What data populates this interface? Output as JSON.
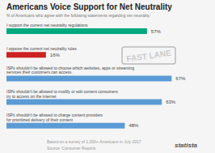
{
  "chart_data": {
    "type": "bar",
    "orientation": "horizontal",
    "title": "Americans Voice Support for Net Neutrality",
    "subtitle": "% of Americans who agree with the following statements regarding net neutrality",
    "categories": [
      "I support the current net neutrality regulations",
      "I oppose the current net neutrality rules",
      "ISPs shouldn't be allowed to choose which websites, apps or streaming\nservices their customers can access.",
      "ISPs shouldn't be allowed to modify or edit content consumers\ntry to access on the internet",
      "ISPs shouldn't be allowed to charge content providers\nfor prioritized delivery of their content"
    ],
    "values": [
      57,
      16,
      67,
      63,
      48
    ],
    "value_labels": [
      "57%",
      "16%",
      "67%",
      "63%",
      "48%"
    ],
    "colors": [
      "#00a87e",
      "#cc2222",
      "#5b9bd5",
      "#5b9bd5",
      "#5b9bd5"
    ],
    "xlim": [
      0,
      80
    ],
    "data_labels": true,
    "tick_labels": false,
    "annotations": [
      "FAST LANE",
      "Based on a survey of 1,000+ Americans in July 2017",
      "Source: Consumer Reports",
      "statista"
    ]
  }
}
